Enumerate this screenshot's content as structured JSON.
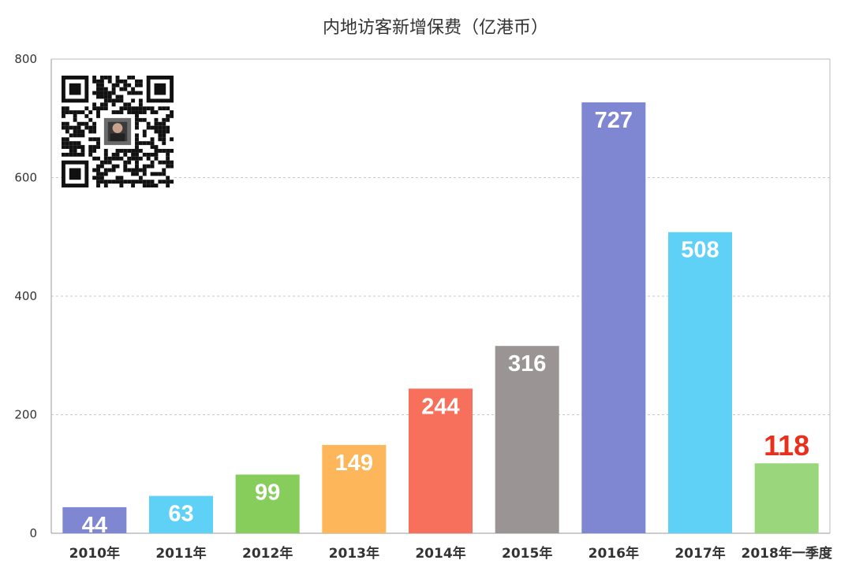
{
  "chart_data": {
    "type": "bar",
    "title": "内地访客新增保费（亿港币）",
    "categories": [
      "2010年",
      "2011年",
      "2012年",
      "2013年",
      "2014年",
      "2015年",
      "2016年",
      "2017年",
      "2018年一季度"
    ],
    "values": [
      44,
      63,
      99,
      149,
      244,
      316,
      727,
      508,
      118
    ],
    "data_labels": [
      "44",
      "63",
      "99",
      "149",
      "244",
      "316",
      "727",
      "508",
      "118"
    ],
    "colors": [
      "#7f87d3",
      "#5fd0f6",
      "#86cd5b",
      "#fdb65a",
      "#f6705c",
      "#9a9594",
      "#7f87d3",
      "#5fd0f6",
      "#9ad77c"
    ],
    "label_colors": [
      "#ffffff",
      "#ffffff",
      "#ffffff",
      "#ffffff",
      "#ffffff",
      "#ffffff",
      "#ffffff",
      "#ffffff",
      "#e8301c"
    ],
    "ylim": [
      0,
      800
    ],
    "yticks": [
      "0",
      "200",
      "400",
      "600",
      "800"
    ],
    "ytick_values": [
      0,
      200,
      400,
      600,
      800
    ],
    "grid": true,
    "xlabel": "",
    "ylabel": ""
  }
}
